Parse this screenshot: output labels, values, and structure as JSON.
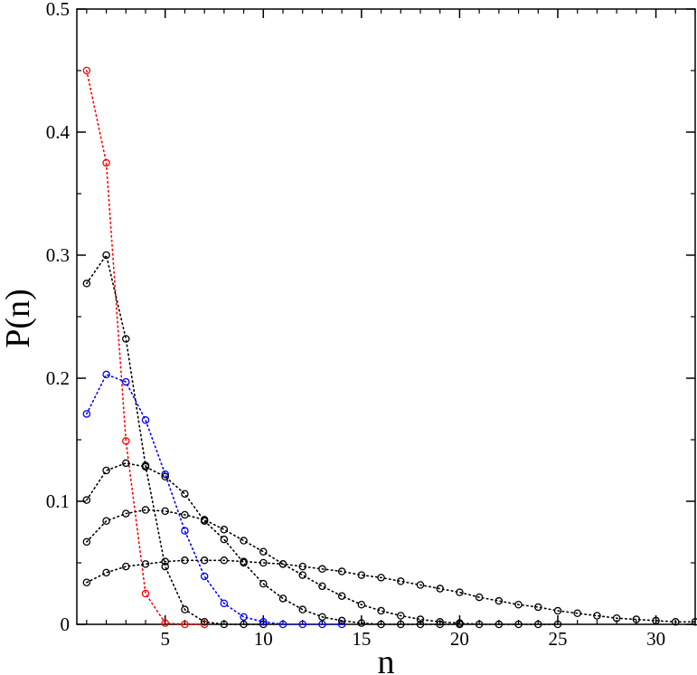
{
  "chart_data": {
    "type": "scatter",
    "xlabel": "n",
    "ylabel": "P(n)",
    "xlim": [
      0.5,
      32
    ],
    "ylim": [
      0,
      0.5
    ],
    "x_ticks": [
      5,
      10,
      15,
      20,
      25,
      30
    ],
    "y_ticks": [
      0,
      0.1,
      0.2,
      0.3,
      0.4,
      0.5
    ],
    "x_tick_labels": [
      "5",
      "10",
      "15",
      "20",
      "25",
      "30"
    ],
    "y_tick_labels": [
      "0",
      "0.1",
      "0.2",
      "0.3",
      "0.4",
      "0.5"
    ],
    "grid": false,
    "legend": false,
    "series": [
      {
        "color": "#ff0000",
        "x": [
          1,
          2,
          3,
          4,
          5,
          6,
          7
        ],
        "y": [
          0.45,
          0.375,
          0.149,
          0.025,
          0.001,
          0.0,
          0.0
        ]
      },
      {
        "color": "#000000",
        "x": [
          1,
          2,
          3,
          4,
          5,
          6,
          7,
          8,
          9,
          10
        ],
        "y": [
          0.277,
          0.3,
          0.232,
          0.129,
          0.047,
          0.012,
          0.002,
          0.0,
          0.0,
          0.0
        ]
      },
      {
        "color": "#0000ff",
        "x": [
          1,
          2,
          3,
          4,
          5,
          6,
          7,
          8,
          9,
          10,
          11,
          12,
          13,
          14
        ],
        "y": [
          0.171,
          0.203,
          0.197,
          0.166,
          0.122,
          0.076,
          0.039,
          0.017,
          0.006,
          0.002,
          0.0,
          0.0,
          0.0,
          0.0
        ]
      },
      {
        "color": "#000000",
        "x": [
          1,
          2,
          3,
          4,
          5,
          6,
          7,
          8,
          9,
          10,
          11,
          12,
          13,
          14,
          15,
          16,
          17,
          18,
          19,
          20
        ],
        "y": [
          0.101,
          0.125,
          0.131,
          0.128,
          0.12,
          0.106,
          0.084,
          0.069,
          0.05,
          0.033,
          0.021,
          0.012,
          0.006,
          0.003,
          0.001,
          0.0,
          0.0,
          0.0,
          0.0,
          0.0
        ]
      },
      {
        "color": "#000000",
        "x": [
          1,
          2,
          3,
          4,
          5,
          6,
          7,
          8,
          9,
          10,
          11,
          12,
          13,
          14,
          15,
          16,
          17,
          18,
          19,
          20,
          21,
          22,
          23,
          24,
          25
        ],
        "y": [
          0.067,
          0.084,
          0.09,
          0.093,
          0.092,
          0.089,
          0.085,
          0.077,
          0.068,
          0.059,
          0.049,
          0.04,
          0.031,
          0.023,
          0.016,
          0.011,
          0.007,
          0.004,
          0.002,
          0.001,
          0.0,
          0.0,
          0.0,
          0.0,
          0.0
        ]
      },
      {
        "color": "#000000",
        "x": [
          1,
          2,
          3,
          4,
          5,
          6,
          7,
          8,
          9,
          10,
          11,
          12,
          13,
          14,
          15,
          16,
          17,
          18,
          19,
          20,
          21,
          22,
          23,
          24,
          25,
          26,
          27,
          28,
          29,
          30,
          31,
          32
        ],
        "y": [
          0.034,
          0.042,
          0.047,
          0.049,
          0.051,
          0.052,
          0.052,
          0.052,
          0.051,
          0.05,
          0.049,
          0.047,
          0.045,
          0.043,
          0.04,
          0.038,
          0.035,
          0.032,
          0.029,
          0.026,
          0.022,
          0.019,
          0.016,
          0.014,
          0.011,
          0.009,
          0.007,
          0.005,
          0.004,
          0.003,
          0.002,
          0.002
        ]
      }
    ]
  }
}
